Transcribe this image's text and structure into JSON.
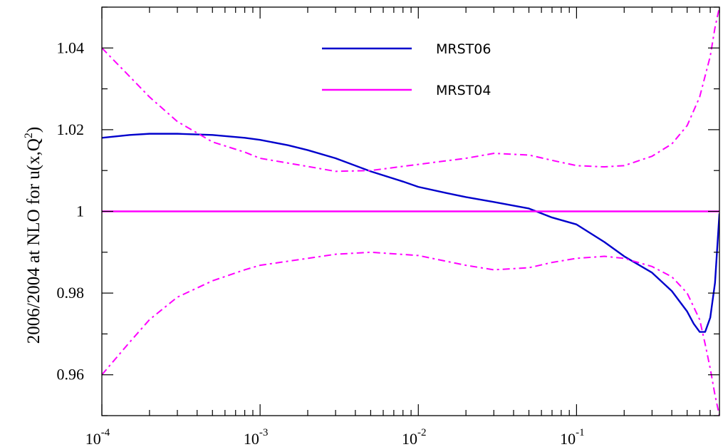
{
  "chart_data": {
    "type": "line",
    "title": "",
    "xlabel": "",
    "ylabel_main": "2006/2004 at NLO for u(x,Q",
    "ylabel_sup": "2",
    "ylabel_tail": ")",
    "xscale": "log",
    "xlim": [
      0.0001,
      0.8
    ],
    "ylim": [
      0.95,
      1.05
    ],
    "xticks_major": [
      {
        "base": "10",
        "exp": "-4"
      },
      {
        "base": "10",
        "exp": "-3"
      },
      {
        "base": "10",
        "exp": "-2"
      },
      {
        "base": "10",
        "exp": "-1"
      }
    ],
    "yticks": [
      "0.96",
      "0.98",
      "1",
      "1.02",
      "1.04"
    ],
    "legend_position": "top-center",
    "series": [
      {
        "name": "MRST06",
        "color": "#0000cc",
        "style": "solid",
        "x": [
          0.0001,
          0.00015,
          0.0002,
          0.0003,
          0.0005,
          0.0008,
          0.001,
          0.0015,
          0.002,
          0.003,
          0.005,
          0.008,
          0.01,
          0.015,
          0.02,
          0.03,
          0.05,
          0.07,
          0.1,
          0.15,
          0.2,
          0.3,
          0.4,
          0.5,
          0.55,
          0.6,
          0.65,
          0.7,
          0.75,
          0.8
        ],
        "y": [
          1.018,
          1.0187,
          1.019,
          1.019,
          1.0187,
          1.018,
          1.0175,
          1.0162,
          1.015,
          1.013,
          1.0098,
          1.0073,
          1.006,
          1.0045,
          1.0035,
          1.0023,
          1.0007,
          0.9985,
          0.9968,
          0.9925,
          0.989,
          0.985,
          0.9805,
          0.9755,
          0.9725,
          0.9705,
          0.9705,
          0.974,
          0.9825,
          0.9995
        ]
      },
      {
        "name": "MRST04",
        "color": "#ff00ff",
        "style": "solid",
        "x": [
          0.0001,
          0.8
        ],
        "y": [
          1.0,
          1.0
        ]
      },
      {
        "name": "",
        "color": "#ff00ff",
        "style": "dashdot",
        "x": [
          0.0001,
          0.00015,
          0.0002,
          0.0003,
          0.0005,
          0.0008,
          0.001,
          0.002,
          0.003,
          0.005,
          0.01,
          0.02,
          0.03,
          0.05,
          0.07,
          0.1,
          0.15,
          0.2,
          0.3,
          0.4,
          0.5,
          0.6,
          0.7,
          0.75,
          0.8
        ],
        "y": [
          1.04,
          1.033,
          1.028,
          1.022,
          1.017,
          1.0145,
          1.013,
          1.011,
          1.0098,
          1.01,
          1.0115,
          1.013,
          1.0142,
          1.0138,
          1.0125,
          1.0112,
          1.0109,
          1.0112,
          1.0135,
          1.0165,
          1.021,
          1.028,
          1.038,
          1.045,
          1.05
        ]
      },
      {
        "name": "",
        "color": "#ff00ff",
        "style": "dashdot",
        "x": [
          0.0001,
          0.00015,
          0.0002,
          0.0003,
          0.0005,
          0.0008,
          0.001,
          0.002,
          0.003,
          0.005,
          0.01,
          0.02,
          0.03,
          0.05,
          0.07,
          0.1,
          0.15,
          0.2,
          0.3,
          0.4,
          0.5,
          0.6,
          0.65,
          0.7,
          0.75,
          0.8
        ],
        "y": [
          0.96,
          0.968,
          0.9735,
          0.979,
          0.983,
          0.9857,
          0.9868,
          0.9885,
          0.9895,
          0.99,
          0.9892,
          0.9868,
          0.9857,
          0.9862,
          0.9875,
          0.9885,
          0.989,
          0.9885,
          0.9865,
          0.984,
          0.98,
          0.9735,
          0.9675,
          0.9615,
          0.955,
          0.95
        ]
      }
    ]
  }
}
